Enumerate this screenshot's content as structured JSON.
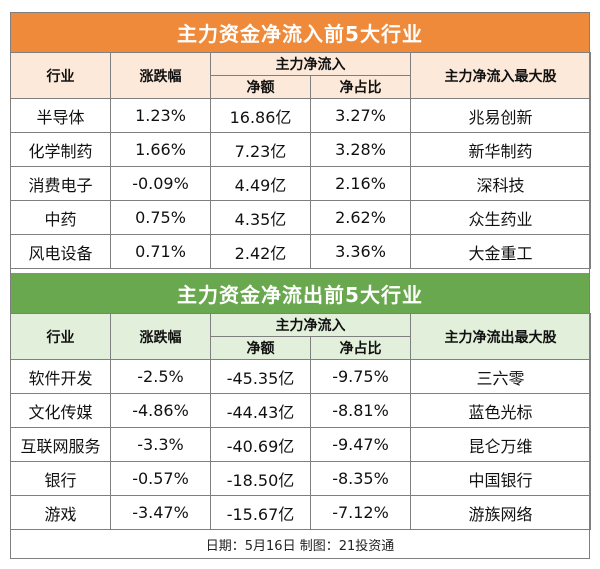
{
  "inflow": {
    "title": "主力资金净流入前5大行业",
    "headers": {
      "industry": "行业",
      "change": "涨跌幅",
      "group": "主力净流入",
      "amount": "净额",
      "ratio": "净占比",
      "top_stock": "主力净流入最大股"
    },
    "rows": [
      {
        "industry": "半导体",
        "change": "1.23%",
        "amount": "16.86亿",
        "ratio": "3.27%",
        "top_stock": "兆易创新"
      },
      {
        "industry": "化学制药",
        "change": "1.66%",
        "amount": "7.23亿",
        "ratio": "3.28%",
        "top_stock": "新华制药"
      },
      {
        "industry": "消费电子",
        "change": "-0.09%",
        "amount": "4.49亿",
        "ratio": "2.16%",
        "top_stock": "深科技"
      },
      {
        "industry": "中药",
        "change": "0.75%",
        "amount": "4.35亿",
        "ratio": "2.62%",
        "top_stock": "众生药业"
      },
      {
        "industry": "风电设备",
        "change": "0.71%",
        "amount": "2.42亿",
        "ratio": "3.36%",
        "top_stock": "大金重工"
      }
    ]
  },
  "outflow": {
    "title": "主力资金净流出前5大行业",
    "headers": {
      "industry": "行业",
      "change": "涨跌幅",
      "group": "主力净流入",
      "amount": "净额",
      "ratio": "净占比",
      "top_stock": "主力净流出最大股"
    },
    "rows": [
      {
        "industry": "软件开发",
        "change": "-2.5%",
        "amount": "-45.35亿",
        "ratio": "-9.75%",
        "top_stock": "三六零"
      },
      {
        "industry": "文化传媒",
        "change": "-4.86%",
        "amount": "-44.43亿",
        "ratio": "-8.81%",
        "top_stock": "蓝色光标"
      },
      {
        "industry": "互联网服务",
        "change": "-3.3%",
        "amount": "-40.69亿",
        "ratio": "-9.47%",
        "top_stock": "昆仑万维"
      },
      {
        "industry": "银行",
        "change": "-0.57%",
        "amount": "-18.50亿",
        "ratio": "-8.35%",
        "top_stock": "中国银行"
      },
      {
        "industry": "游戏",
        "change": "-3.47%",
        "amount": "-15.67亿",
        "ratio": "-7.12%",
        "top_stock": "游族网络"
      }
    ]
  },
  "footer": "日期：5月16日 制图：21投资通",
  "colors": {
    "inflow_accent": "#ef8a3a",
    "inflow_header_bg": "#fde9d9",
    "outflow_accent": "#6aa84f",
    "outflow_header_bg": "#e2efda"
  }
}
